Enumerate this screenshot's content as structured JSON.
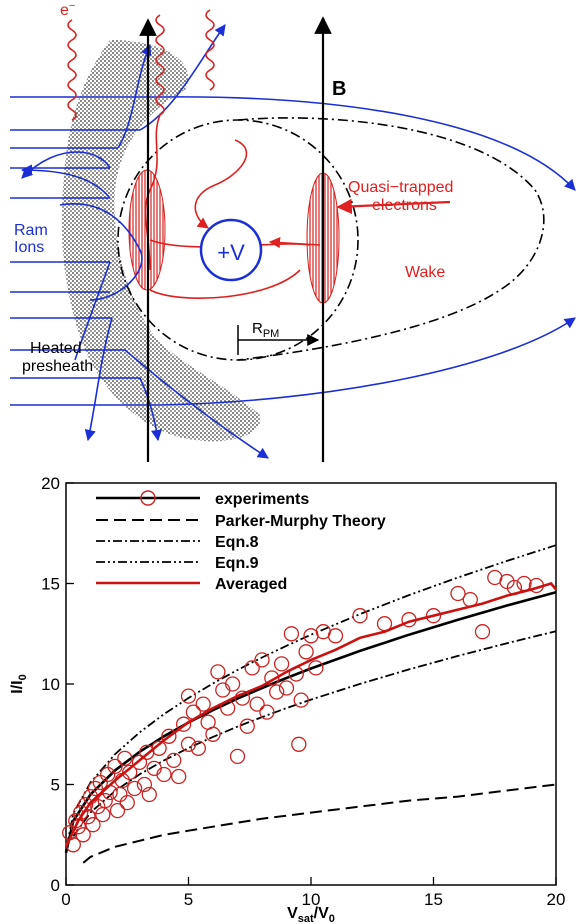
{
  "diagram": {
    "labels": {
      "electron": "e",
      "electron_sup": "−",
      "field": "B",
      "quasi_trapped_line1": "Quasi−trapped",
      "quasi_trapped_line2": "electrons",
      "ram_line1": "Ram",
      "ram_line2": "Ions",
      "probe": "+V",
      "wake": "Wake",
      "rpm_main": "R",
      "rpm_sub": "PM",
      "heated_line1": "Heated",
      "heated_line2": "presheath"
    },
    "colors": {
      "ion_blue": "#1c2fd6",
      "electron_red": "#e02020",
      "ink": "#000000"
    }
  },
  "chart_data": {
    "type": "scatter",
    "title": "",
    "xlabel_main": "V",
    "xlabel_sub1": "sat",
    "xlabel_mid": "/V",
    "xlabel_sub2": "0",
    "ylabel_main": "I/I",
    "ylabel_sub": "0",
    "xlim": [
      0,
      20
    ],
    "ylim": [
      0,
      20
    ],
    "x_ticks": [
      0,
      5,
      10,
      15,
      20
    ],
    "y_ticks": [
      0,
      5,
      10,
      15,
      20
    ],
    "x_tick_labels": [
      "0",
      "5",
      "10",
      "15",
      "20"
    ],
    "y_tick_labels": [
      "0",
      "5",
      "10",
      "15",
      "20"
    ],
    "legend_position": "top-left",
    "legend": [
      "experiments",
      "Parker-Murphy Theory",
      "Eqn.8",
      "Eqn.9",
      "Averaged"
    ],
    "series": [
      {
        "name": "experiments",
        "style": "markers",
        "color": "#cc2222",
        "points": [
          [
            0.15,
            2.6
          ],
          [
            0.3,
            2.0
          ],
          [
            0.4,
            3.2
          ],
          [
            0.5,
            2.9
          ],
          [
            0.6,
            3.6
          ],
          [
            0.7,
            2.5
          ],
          [
            0.8,
            4.0
          ],
          [
            0.9,
            3.4
          ],
          [
            1.0,
            4.4
          ],
          [
            1.1,
            3.0
          ],
          [
            1.2,
            4.8
          ],
          [
            1.3,
            3.9
          ],
          [
            1.4,
            5.1
          ],
          [
            1.5,
            3.5
          ],
          [
            1.6,
            4.2
          ],
          [
            1.7,
            5.5
          ],
          [
            1.8,
            4.6
          ],
          [
            2.0,
            5.9
          ],
          [
            2.1,
            3.7
          ],
          [
            2.2,
            4.5
          ],
          [
            2.3,
            5.2
          ],
          [
            2.4,
            6.3
          ],
          [
            2.5,
            4.1
          ],
          [
            2.6,
            5.6
          ],
          [
            2.8,
            4.8
          ],
          [
            3.0,
            6.1
          ],
          [
            3.2,
            5.0
          ],
          [
            3.3,
            6.6
          ],
          [
            3.4,
            4.5
          ],
          [
            3.6,
            5.8
          ],
          [
            3.8,
            6.8
          ],
          [
            4.0,
            5.5
          ],
          [
            4.2,
            7.4
          ],
          [
            4.4,
            6.2
          ],
          [
            4.6,
            5.4
          ],
          [
            4.8,
            8.0
          ],
          [
            5.0,
            7.0
          ],
          [
            5.0,
            9.4
          ],
          [
            5.2,
            8.6
          ],
          [
            5.4,
            6.8
          ],
          [
            5.6,
            9.0
          ],
          [
            5.8,
            8.1
          ],
          [
            6.0,
            7.5
          ],
          [
            6.2,
            10.6
          ],
          [
            6.4,
            9.7
          ],
          [
            6.6,
            8.8
          ],
          [
            6.8,
            10.0
          ],
          [
            7.0,
            6.4
          ],
          [
            7.2,
            9.3
          ],
          [
            7.4,
            7.9
          ],
          [
            7.6,
            10.8
          ],
          [
            7.8,
            9.0
          ],
          [
            8.0,
            11.2
          ],
          [
            8.2,
            8.6
          ],
          [
            8.4,
            10.3
          ],
          [
            8.6,
            9.6
          ],
          [
            8.8,
            11.0
          ],
          [
            9.0,
            9.8
          ],
          [
            9.2,
            12.5
          ],
          [
            9.4,
            10.5
          ],
          [
            9.5,
            7.0
          ],
          [
            9.6,
            9.2
          ],
          [
            9.8,
            11.6
          ],
          [
            10.0,
            12.4
          ],
          [
            10.2,
            10.8
          ],
          [
            10.5,
            12.6
          ],
          [
            11.0,
            12.4
          ],
          [
            12.0,
            13.4
          ],
          [
            13.0,
            13.0
          ],
          [
            14.0,
            13.2
          ],
          [
            15.0,
            13.4
          ],
          [
            16.0,
            14.5
          ],
          [
            16.5,
            14.2
          ],
          [
            17.0,
            12.6
          ],
          [
            17.5,
            15.3
          ],
          [
            18.0,
            15.1
          ],
          [
            18.3,
            14.8
          ],
          [
            18.7,
            15.0
          ],
          [
            19.2,
            14.9
          ]
        ]
      },
      {
        "name": "Averaged",
        "style": "solid",
        "color": "#cc1111",
        "x": [
          0,
          0.5,
          1,
          2,
          3,
          4,
          5,
          6,
          7,
          8,
          9,
          10,
          11,
          12,
          13,
          14,
          15,
          16,
          17,
          18,
          19,
          19.8,
          20
        ],
        "y": [
          1.9,
          3.2,
          4.1,
          5.2,
          6.2,
          7.2,
          8.1,
          8.8,
          9.4,
          9.9,
          10.6,
          11.2,
          11.7,
          12.3,
          12.6,
          13.1,
          13.4,
          13.7,
          14.0,
          14.4,
          14.7,
          15.0,
          14.7
        ]
      },
      {
        "name": "Parker-Murphy Theory",
        "style": "dashed",
        "color": "#000000",
        "x": [
          0.7,
          1,
          2,
          3,
          4,
          5,
          6,
          8,
          10,
          12,
          14,
          16,
          18,
          20
        ],
        "y": [
          1.1,
          1.4,
          1.9,
          2.2,
          2.5,
          2.7,
          2.9,
          3.3,
          3.6,
          3.9,
          4.2,
          4.4,
          4.7,
          5.0
        ]
      }
    ]
  }
}
